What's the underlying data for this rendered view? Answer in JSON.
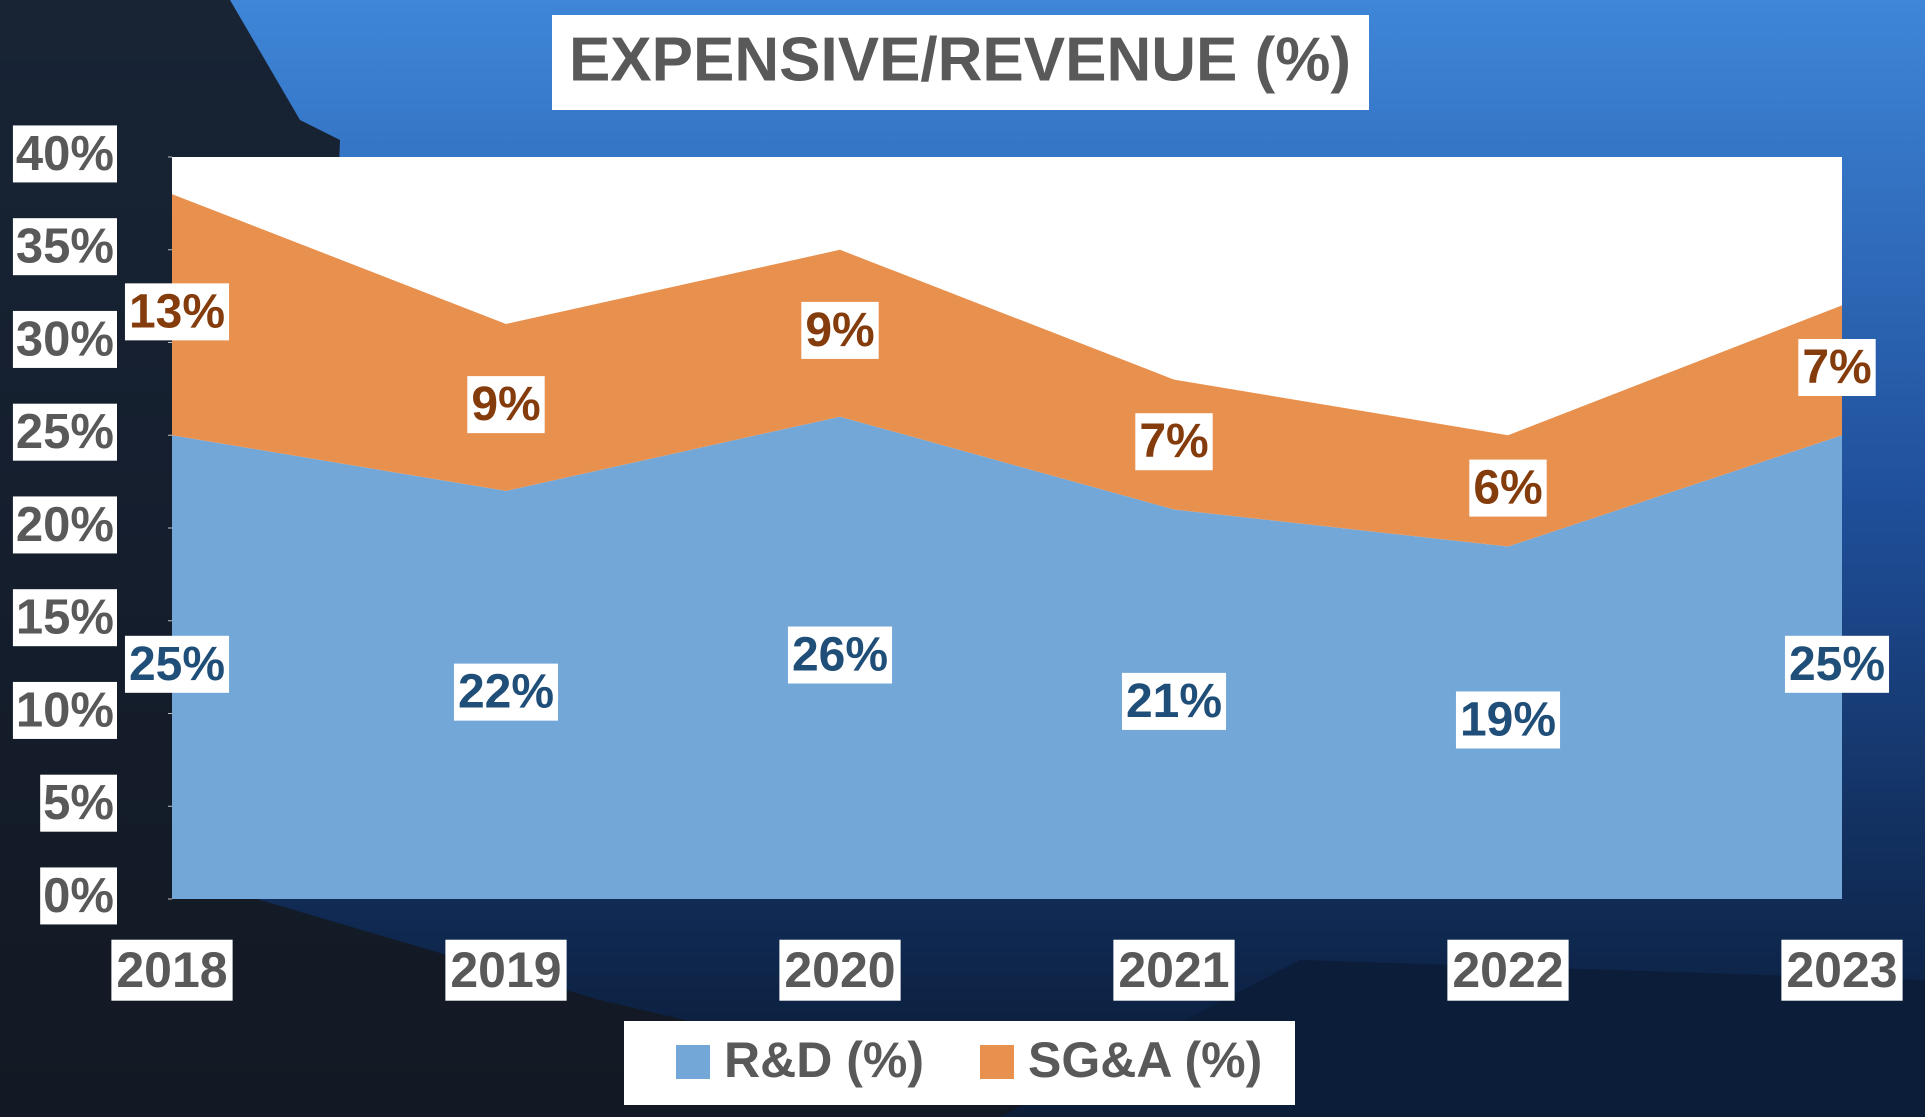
{
  "chart_data": {
    "type": "stacked-area",
    "title": "EXPENSIVE/REVENUE (%)",
    "categories": [
      "2018",
      "2019",
      "2020",
      "2021",
      "2022",
      "2023"
    ],
    "series": [
      {
        "name": "R&D (%)",
        "color": "#72a7d8",
        "label_color": "#1f4e79",
        "values": [
          25,
          22,
          26,
          21,
          19,
          25
        ],
        "value_labels": [
          "25%",
          "22%",
          "26%",
          "21%",
          "19%",
          "25%"
        ]
      },
      {
        "name": "SG&A (%)",
        "color": "#e8914f",
        "label_color": "#843c0c",
        "values": [
          13,
          9,
          9,
          7,
          6,
          7
        ],
        "value_labels": [
          "13%",
          "9%",
          "9%",
          "7%",
          "6%",
          "7%"
        ]
      }
    ],
    "ylim": [
      0,
      40
    ],
    "yticks": [
      {
        "value": 0,
        "label": "0%"
      },
      {
        "value": 5,
        "label": "5%"
      },
      {
        "value": 10,
        "label": "10%"
      },
      {
        "value": 15,
        "label": "15%"
      },
      {
        "value": 20,
        "label": "20%"
      },
      {
        "value": 25,
        "label": "25%"
      },
      {
        "value": 30,
        "label": "30%"
      },
      {
        "value": 35,
        "label": "35%"
      },
      {
        "value": 40,
        "label": "40%"
      }
    ],
    "legend": "bottom"
  }
}
